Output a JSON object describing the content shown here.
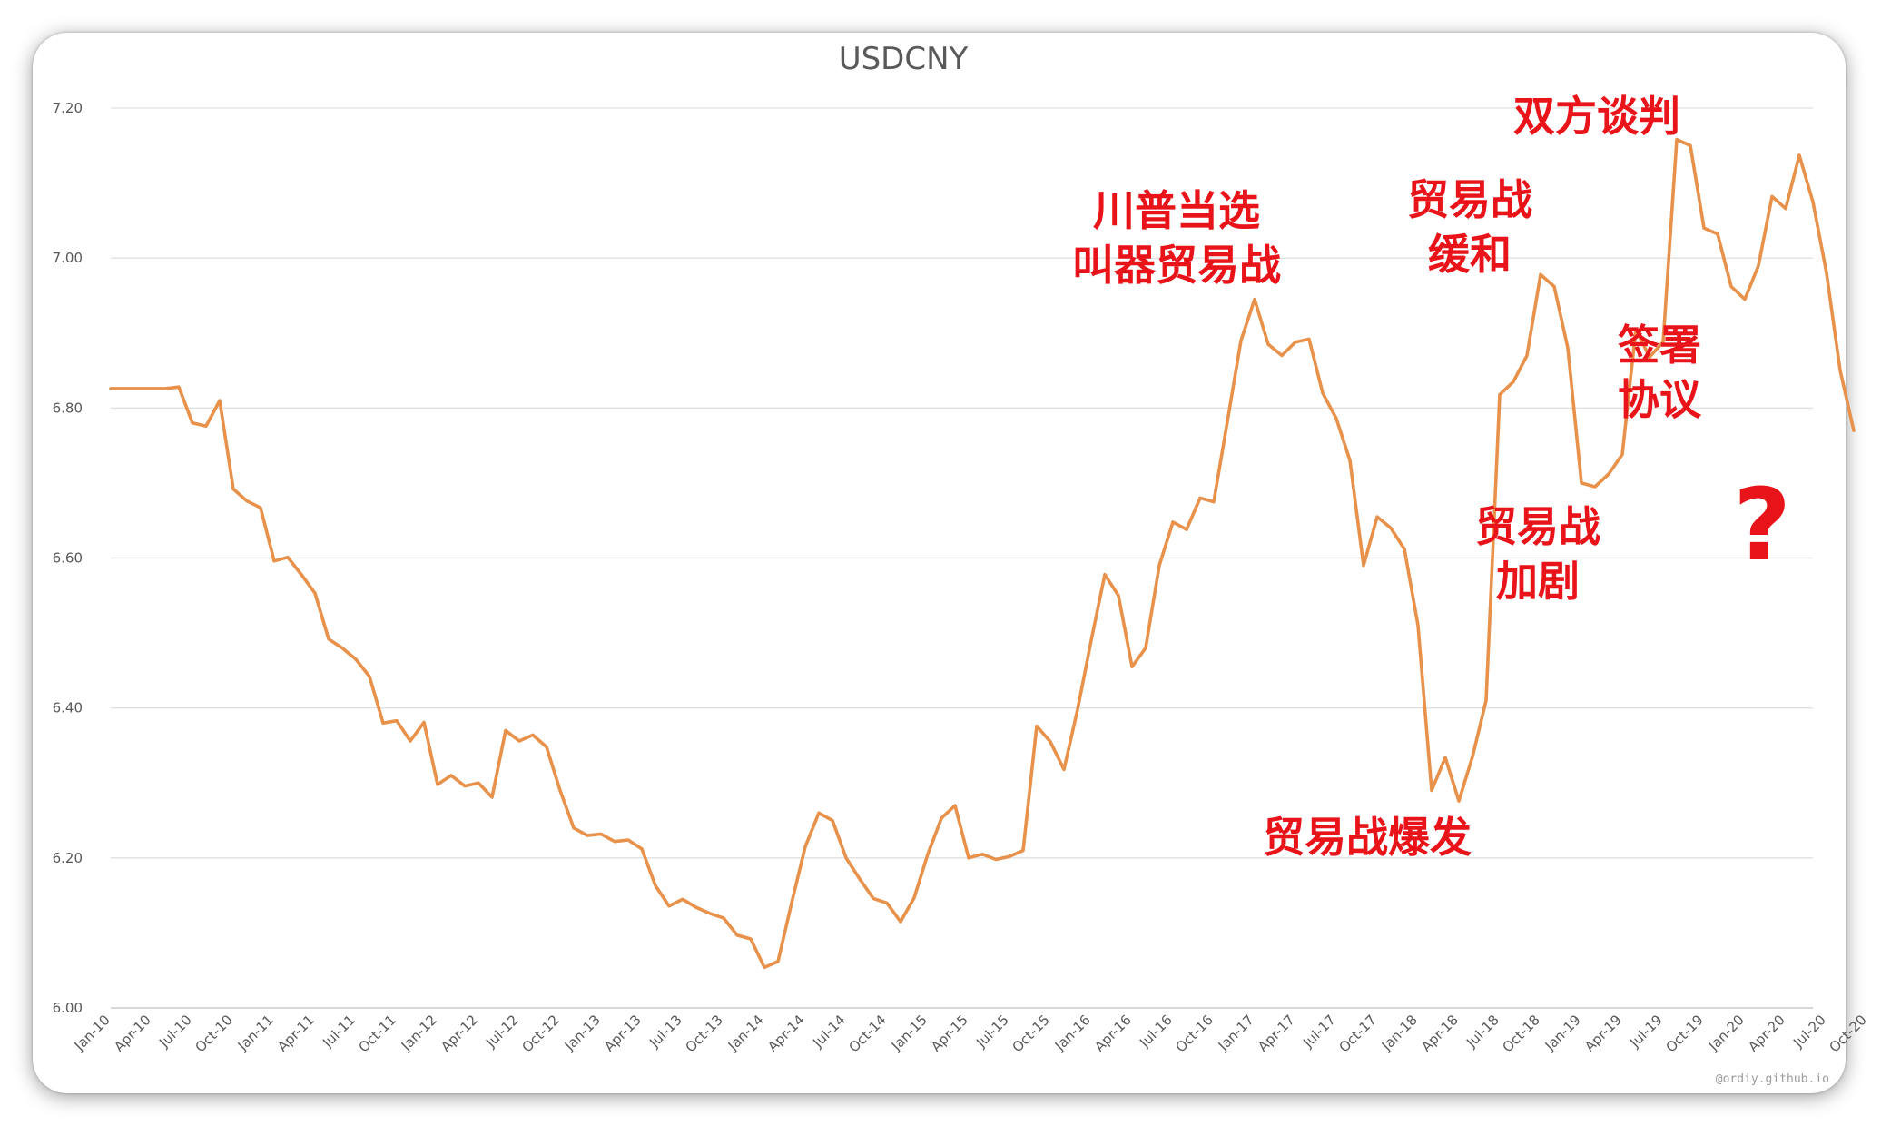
{
  "watermark": "@ordiy.github.io",
  "chart_data": {
    "type": "line",
    "title": "USDCNY",
    "xlabel": "",
    "ylabel": "",
    "ylim": [
      6.0,
      7.2
    ],
    "yticks": [
      "6.00",
      "6.20",
      "6.40",
      "6.60",
      "6.80",
      "7.00",
      "7.20"
    ],
    "grid": "horizontal",
    "legend": "none",
    "line_color": "#E8914A",
    "tick_labels": [
      "Jan-10",
      "Apr-10",
      "Jul-10",
      "Oct-10",
      "Jan-11",
      "Apr-11",
      "Jul-11",
      "Oct-11",
      "Jan-12",
      "Apr-12",
      "Jul-12",
      "Oct-12",
      "Jan-13",
      "Apr-13",
      "Jul-13",
      "Oct-13",
      "Jan-14",
      "Apr-14",
      "Jul-14",
      "Oct-14",
      "Jan-15",
      "Apr-15",
      "Jul-15",
      "Oct-15",
      "Jan-16",
      "Apr-16",
      "Jul-16",
      "Oct-16",
      "Jan-17",
      "Apr-17",
      "Jul-17",
      "Oct-17",
      "Jan-18",
      "Apr-18",
      "Jul-18",
      "Oct-18",
      "Jan-19",
      "Apr-19",
      "Jul-19",
      "Oct-19",
      "Jan-20",
      "Apr-20",
      "Jul-20",
      "Oct-20"
    ],
    "series": [
      {
        "values": [
          6.826,
          6.826,
          6.826,
          6.826,
          6.826,
          6.828,
          6.78,
          6.776,
          6.81,
          6.692,
          6.676,
          6.667,
          6.596,
          6.601,
          6.578,
          6.553,
          6.492,
          6.48,
          6.465,
          6.442,
          6.38,
          6.383,
          6.356,
          6.381,
          6.298,
          6.31,
          6.296,
          6.3,
          6.281,
          6.37,
          6.356,
          6.364,
          6.348,
          6.29,
          6.24,
          6.23,
          6.232,
          6.222,
          6.224,
          6.212,
          6.163,
          6.136,
          6.145,
          6.134,
          6.126,
          6.12,
          6.097,
          6.092,
          6.054,
          6.062,
          6.14,
          6.215,
          6.26,
          6.25,
          6.2,
          6.172,
          6.146,
          6.14,
          6.115,
          6.147,
          6.205,
          6.253,
          6.27,
          6.2,
          6.205,
          6.198,
          6.202,
          6.21,
          6.376,
          6.355,
          6.318,
          6.398,
          6.49,
          6.578,
          6.55,
          6.455,
          6.48,
          6.59,
          6.648,
          6.638,
          6.68,
          6.675,
          6.782,
          6.89,
          6.945,
          6.885,
          6.87,
          6.888,
          6.892,
          6.82,
          6.786,
          6.73,
          6.59,
          6.655,
          6.64,
          6.612,
          6.51,
          6.29,
          6.334,
          6.276,
          6.335,
          6.41,
          6.818,
          6.835,
          6.87,
          6.978,
          6.962,
          6.88,
          6.7,
          6.695,
          6.712,
          6.738,
          6.905,
          6.868,
          6.888,
          7.158,
          7.15,
          7.04,
          7.032,
          6.962,
          6.945,
          6.99,
          7.082,
          7.066,
          7.137,
          7.075,
          6.98,
          6.85,
          6.77
        ]
      }
    ],
    "annotations": [
      {
        "lines": [
          "川普当选",
          "叫器贸易战"
        ],
        "color": "#E8141A"
      },
      {
        "lines": [
          "贸易战",
          "缓和"
        ],
        "color": "#E8141A"
      },
      {
        "lines": [
          "双方谈判"
        ],
        "color": "#E8141A"
      },
      {
        "lines": [
          "签署",
          "协议"
        ],
        "color": "#E8141A"
      },
      {
        "lines": [
          "贸易战",
          "加剧"
        ],
        "color": "#E8141A"
      },
      {
        "lines": [
          "贸易战爆发"
        ],
        "color": "#E8141A"
      },
      {
        "lines": [
          "?"
        ],
        "color": "#E8141A"
      }
    ]
  }
}
